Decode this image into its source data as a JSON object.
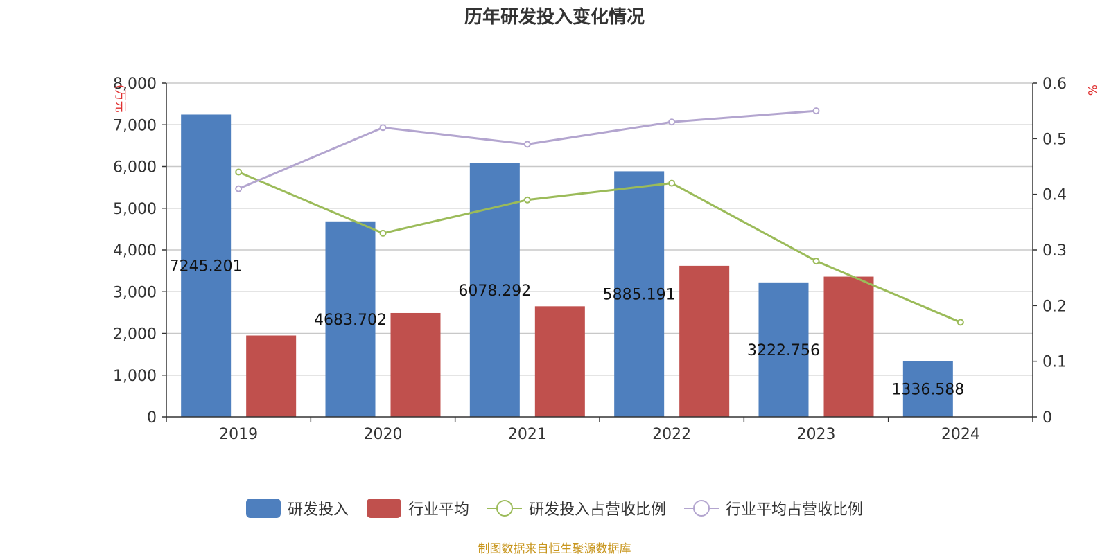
{
  "chart_data": {
    "type": "bar",
    "title": "历年研发投入变化情况",
    "categories": [
      "2019",
      "2020",
      "2021",
      "2022",
      "2023",
      "2024"
    ],
    "left_axis": {
      "unit_label": "(万元",
      "ylim": [
        0,
        8000
      ],
      "ticks": [
        0,
        1000,
        2000,
        3000,
        4000,
        5000,
        6000,
        7000,
        8000
      ],
      "tick_labels": [
        "0",
        "1,000",
        "2,000",
        "3,000",
        "4,000",
        "5,000",
        "6,000",
        "7,000",
        "8,000"
      ]
    },
    "right_axis": {
      "unit_label": "%",
      "ylim": [
        0,
        0.6
      ],
      "ticks": [
        0,
        0.1,
        0.2,
        0.3,
        0.4,
        0.5,
        0.6
      ],
      "tick_labels": [
        "0",
        "0.1",
        "0.2",
        "0.3",
        "0.4",
        "0.5",
        "0.6"
      ]
    },
    "series": [
      {
        "name": "研发投入",
        "type": "bar",
        "axis": "left",
        "color": "#4e7fbe",
        "values": [
          7245.201,
          4683.702,
          6078.292,
          5885.191,
          3222.756,
          1336.588
        ],
        "data_labels": [
          "7245.201",
          "4683.702",
          "6078.292",
          "5885.191",
          "3222.756",
          "1336.588"
        ]
      },
      {
        "name": "行业平均",
        "type": "bar",
        "axis": "left",
        "color": "#c0504d",
        "values": [
          1950,
          2490,
          2650,
          3620,
          3360,
          null
        ]
      },
      {
        "name": "研发投入占营收比例",
        "type": "line",
        "axis": "right",
        "color": "#9bbb59",
        "values": [
          0.44,
          0.33,
          0.39,
          0.42,
          0.28,
          0.17
        ]
      },
      {
        "name": "行业平均占营收比例",
        "type": "line",
        "axis": "right",
        "color": "#b3a5cf",
        "values": [
          0.41,
          0.52,
          0.49,
          0.53,
          0.55,
          null
        ]
      }
    ],
    "grid": true,
    "legend_position": "bottom"
  },
  "source_note": "制图数据来自恒生聚源数据库"
}
